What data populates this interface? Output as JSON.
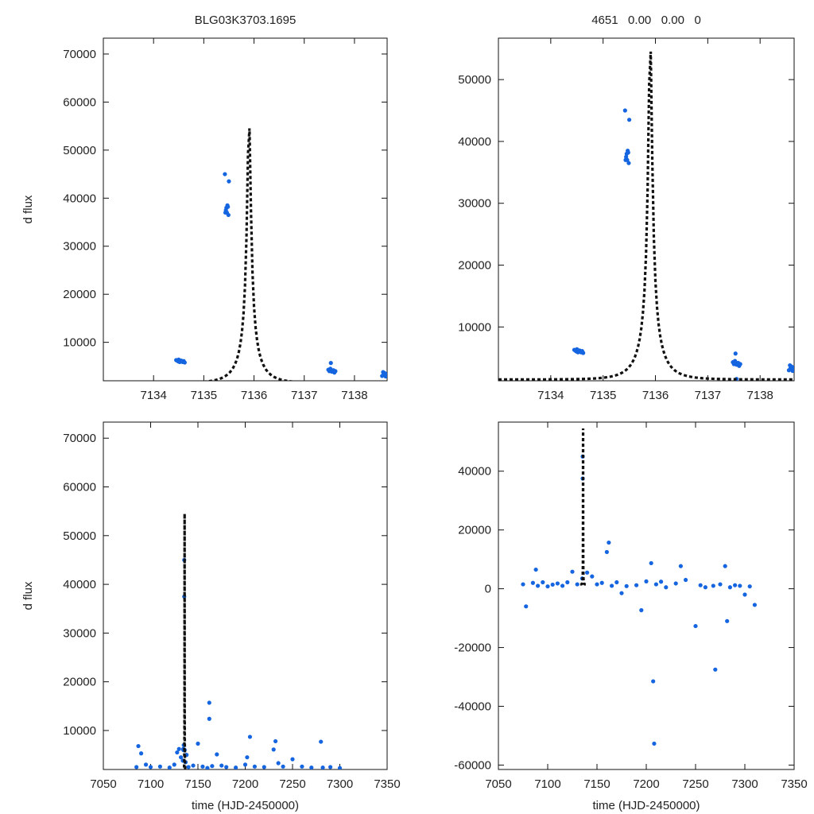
{
  "chart_data": [
    {
      "id": "zoom-scaled",
      "type": "scatter",
      "title": "BLG03K3703.1695",
      "xlabel": "",
      "ylabel": "d flux",
      "xlim": [
        7133.0,
        7138.65
      ],
      "ylim": [
        2000,
        73300
      ],
      "xticks": [
        7134,
        7135,
        7136,
        7137,
        7138
      ],
      "yticks": [
        10000,
        20000,
        30000,
        40000,
        50000,
        60000,
        70000
      ],
      "model": {
        "t0": 7135.9,
        "fmax": 56700,
        "fbase": 1500,
        "tau": 0.45,
        "tmin": 7133.0,
        "tmax": 7138.65,
        "step": 0.03
      },
      "points": {
        "x": [
          7134.45,
          7134.48,
          7134.5,
          7134.52,
          7134.55,
          7134.58,
          7134.6,
          7134.62,
          7134.5,
          7134.56,
          7135.43,
          7135.45,
          7135.47,
          7135.49,
          7135.44,
          7135.46,
          7135.48,
          7135.42,
          7135.5,
          7137.48,
          7137.5,
          7137.52,
          7137.55,
          7137.58,
          7137.6,
          7137.62,
          7137.53,
          7138.55,
          7138.58,
          7138.6,
          7138.62,
          7138.65,
          7138.57,
          7138.63
        ],
        "y": [
          6300,
          6100,
          6000,
          5900,
          6200,
          5900,
          6100,
          5800,
          6400,
          6000,
          37000,
          38000,
          38500,
          36500,
          37500,
          37000,
          38200,
          45000,
          43500,
          4300,
          4000,
          4500,
          3900,
          4200,
          3700,
          4000,
          5700,
          3000,
          3300,
          3600,
          2900,
          3100,
          3800,
          3400
        ]
      }
    },
    {
      "id": "zoom-auto",
      "type": "scatter",
      "title": "4651   0.00   0.00   0",
      "xlabel": "",
      "ylabel": "",
      "xlim": [
        7133.0,
        7138.65
      ],
      "ylim": [
        1300,
        56700
      ],
      "xticks": [
        7134,
        7135,
        7136,
        7137,
        7138
      ],
      "yticks": [
        10000,
        20000,
        30000,
        40000,
        50000
      ],
      "model": {
        "t0": 7135.9,
        "fmax": 56700,
        "fbase": 1500,
        "tau": 0.45,
        "tmin": 7133.0,
        "tmax": 7138.65,
        "step": 0.03
      },
      "points": {
        "x": [
          7134.45,
          7134.48,
          7134.5,
          7134.52,
          7134.55,
          7134.58,
          7134.6,
          7134.62,
          7134.5,
          7134.56,
          7135.43,
          7135.45,
          7135.47,
          7135.49,
          7135.44,
          7135.46,
          7135.48,
          7135.42,
          7135.5,
          7137.48,
          7137.5,
          7137.52,
          7137.55,
          7137.58,
          7137.6,
          7137.62,
          7137.53,
          7137.55,
          7138.55,
          7138.58,
          7138.6,
          7138.62,
          7138.65,
          7138.57,
          7138.63
        ],
        "y": [
          6300,
          6100,
          6000,
          5900,
          6200,
          5900,
          6100,
          5800,
          6400,
          6000,
          37000,
          38000,
          38500,
          36500,
          37500,
          37000,
          38200,
          45000,
          43500,
          4300,
          4000,
          4500,
          3900,
          4200,
          3700,
          4000,
          5700,
          1600,
          3000,
          3300,
          3600,
          2900,
          3100,
          3800,
          3400
        ]
      }
    },
    {
      "id": "full-scaled",
      "type": "scatter",
      "title": "",
      "xlabel": "time (HJD-2450000)",
      "ylabel": "d flux",
      "xlim": [
        7050,
        7350
      ],
      "ylim": [
        2000,
        73300
      ],
      "xticks": [
        7050,
        7100,
        7150,
        7200,
        7250,
        7300,
        7350
      ],
      "yticks": [
        10000,
        20000,
        30000,
        40000,
        50000,
        60000,
        70000
      ],
      "model": {
        "t0": 7135.9,
        "fmax": 56700,
        "fbase": 1500,
        "tau": 0.45,
        "tmin": 7133.0,
        "tmax": 7138.65,
        "step": 0.03
      },
      "points": {
        "x": [
          7085,
          7087,
          7090,
          7095,
          7100,
          7110,
          7120,
          7125,
          7128,
          7130,
          7132,
          7134,
          7135,
          7136,
          7137,
          7138,
          7140,
          7145,
          7150,
          7155,
          7160,
          7162,
          7162,
          7165,
          7170,
          7175,
          7180,
          7190,
          7200,
          7202,
          7205,
          7210,
          7220,
          7230,
          7232,
          7235,
          7240,
          7250,
          7260,
          7270,
          7280,
          7282,
          7290,
          7300,
          7134.5,
          7135.5,
          7135.5,
          7134.6
        ],
        "y": [
          2500,
          6800,
          5300,
          3000,
          2500,
          2600,
          2400,
          3000,
          5500,
          6200,
          4500,
          3800,
          7000,
          6000,
          3500,
          5000,
          2500,
          2800,
          7300,
          2600,
          2300,
          15700,
          12400,
          2700,
          5100,
          2800,
          2500,
          2400,
          3000,
          4500,
          8700,
          2600,
          2500,
          6100,
          7800,
          3300,
          2600,
          4100,
          2600,
          2400,
          7700,
          2400,
          2500,
          2300,
          6200,
          37500,
          45000,
          6000
        ]
      }
    },
    {
      "id": "full-auto",
      "type": "scatter",
      "title": "",
      "xlabel": "time (HJD-2450000)",
      "ylabel": "",
      "xlim": [
        7050,
        7350
      ],
      "ylim": [
        -61500,
        56700
      ],
      "xticks": [
        7050,
        7100,
        7150,
        7200,
        7250,
        7300,
        7350
      ],
      "yticks": [
        -60000,
        -40000,
        -20000,
        0,
        20000,
        40000
      ],
      "model": {
        "t0": 7135.9,
        "fmax": 56700,
        "fbase": 1500,
        "tau": 0.45,
        "tmin": 7133.0,
        "tmax": 7138.65,
        "step": 0.03
      },
      "points": {
        "x": [
          7075,
          7078,
          7085,
          7088,
          7090,
          7095,
          7100,
          7105,
          7110,
          7115,
          7120,
          7125,
          7130,
          7135,
          7140,
          7145,
          7150,
          7155,
          7160,
          7162,
          7165,
          7170,
          7175,
          7180,
          7190,
          7195,
          7200,
          7205,
          7207,
          7208,
          7210,
          7215,
          7220,
          7230,
          7235,
          7240,
          7250,
          7255,
          7260,
          7268,
          7270,
          7275,
          7280,
          7282,
          7285,
          7290,
          7295,
          7300,
          7305,
          7310,
          7135.5,
          7135.5
        ],
        "y": [
          1500,
          -6000,
          2000,
          6500,
          1000,
          2200,
          800,
          1400,
          1800,
          1000,
          2200,
          5800,
          1500,
          3500,
          5500,
          4200,
          1500,
          2000,
          12500,
          15700,
          1000,
          2200,
          -1500,
          900,
          1200,
          -7300,
          2500,
          8700,
          -31500,
          -52700,
          1500,
          2400,
          500,
          1800,
          7700,
          3000,
          -12700,
          1200,
          500,
          1000,
          -27500,
          1500,
          7700,
          -11000,
          500,
          1200,
          1000,
          -2000,
          800,
          -5500,
          37500,
          45000
        ]
      }
    }
  ]
}
